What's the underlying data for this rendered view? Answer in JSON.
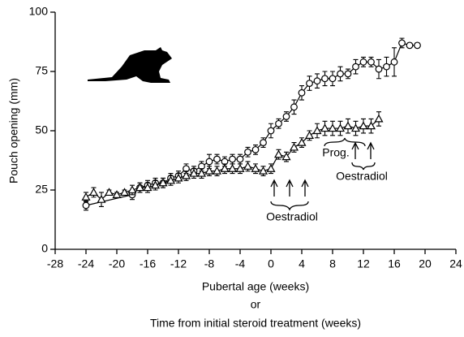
{
  "chart_data": {
    "type": "line",
    "ylabel": "Pouch opening (mm)",
    "xlabel_lines": [
      "Pubertal age (weeks)",
      "or",
      "Time from initial steroid treatment (weeks)"
    ],
    "xlim": [
      -28,
      24
    ],
    "xticks": [
      -28,
      -24,
      -20,
      -16,
      -12,
      -8,
      -4,
      0,
      4,
      8,
      12,
      16,
      20,
      24
    ],
    "ylim": [
      0,
      100
    ],
    "yticks": [
      0,
      25,
      50,
      75,
      100
    ],
    "grid": false,
    "series": [
      {
        "marker": "circle",
        "color": "#000000",
        "x": [
          -24,
          -18,
          -17,
          -16,
          -15,
          -14,
          -13,
          -12,
          -11,
          -10,
          -9,
          -8,
          -7,
          -6,
          -5,
          -4,
          -3,
          -2,
          -1,
          0,
          1,
          2,
          3,
          4,
          5,
          6,
          7,
          8,
          9,
          10,
          11,
          12,
          13,
          14,
          15,
          16,
          17,
          18,
          19
        ],
        "values": [
          18.5,
          23,
          26,
          27,
          28,
          28,
          30,
          31,
          34,
          33,
          35,
          37,
          38,
          37,
          38,
          38,
          41,
          42,
          45,
          50,
          53,
          56,
          60,
          66,
          70,
          71,
          72,
          72,
          74,
          74,
          77,
          79,
          79,
          76,
          77,
          79,
          87,
          86,
          86
        ],
        "errors": [
          2,
          2,
          2,
          2,
          2,
          2,
          2,
          2,
          2,
          2,
          2,
          3,
          2,
          2,
          2,
          2,
          2,
          2,
          2,
          3,
          2,
          2,
          3,
          3,
          3,
          3,
          3,
          3,
          3,
          2,
          3,
          2,
          2,
          4,
          4,
          6,
          2,
          1,
          1
        ]
      },
      {
        "marker": "triangle",
        "color": "#000000",
        "x": [
          -24,
          -23,
          -22,
          -21,
          -20,
          -19,
          -18,
          -17,
          -16,
          -15,
          -14,
          -13,
          -12,
          -11,
          -10,
          -9,
          -8,
          -7,
          -6,
          -5,
          -4,
          -3,
          -2,
          -1,
          0,
          1,
          2,
          3,
          4,
          5,
          6,
          7,
          8,
          9,
          10,
          11,
          12,
          13,
          14
        ],
        "values": [
          22,
          24,
          21,
          24,
          23,
          24,
          25,
          26,
          26,
          27,
          28,
          29,
          30,
          31,
          32,
          32,
          33,
          33,
          34,
          34,
          34,
          35,
          34,
          33,
          34,
          40,
          39,
          43,
          45,
          48,
          50,
          51,
          51,
          51,
          52,
          51,
          52,
          52,
          55
        ],
        "errors": [
          2,
          2,
          3,
          1,
          1,
          1,
          2,
          2,
          2,
          2,
          2,
          2,
          2,
          2,
          2,
          2,
          2,
          2,
          2,
          2,
          2,
          2,
          2,
          2,
          2,
          2,
          2,
          2,
          2,
          2,
          3,
          3,
          3,
          3,
          3,
          3,
          3,
          3,
          3
        ]
      }
    ],
    "annotations": [
      "Oestradiol",
      "Prog.",
      "Oestradiol"
    ]
  }
}
